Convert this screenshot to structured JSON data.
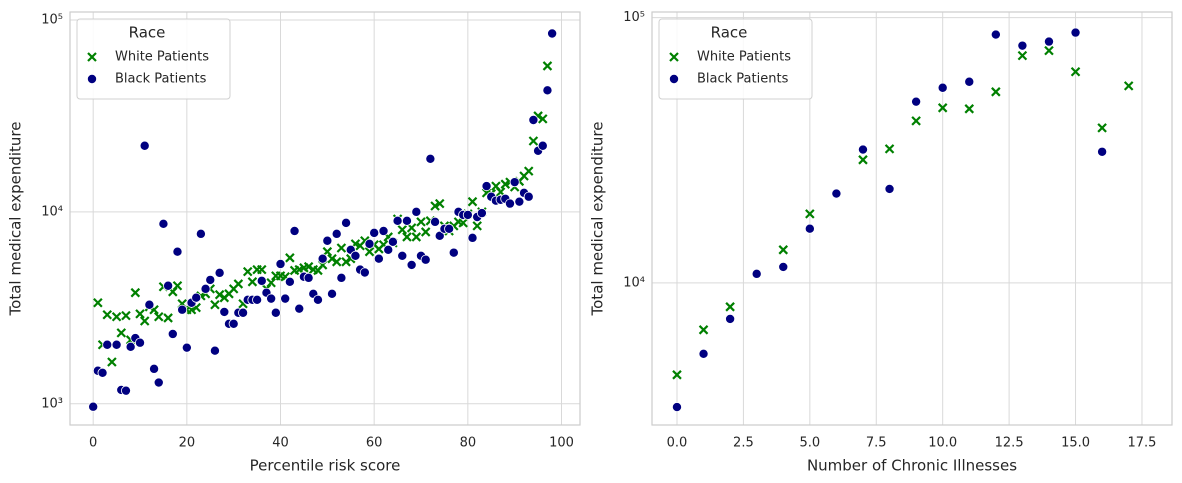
{
  "chart_data": [
    {
      "type": "scatter",
      "xlabel": "Percentile risk score",
      "ylabel": "Total medical expenditure",
      "yscale": "log",
      "grid": true,
      "xlim": [
        -4.95,
        103.95
      ],
      "ylim": [
        775,
        110000
      ],
      "xticks": [
        0,
        20,
        40,
        60,
        80,
        100
      ],
      "yticks": [
        {
          "value": 1000,
          "label": "10³"
        },
        {
          "value": 10000,
          "label": "10⁴"
        },
        {
          "value": 100000,
          "label": "10⁵"
        }
      ],
      "legend_title": "Race",
      "legend_loc": "upper left",
      "series": [
        {
          "name": "White Patients",
          "color": "#008000",
          "marker": "x",
          "x": [
            1,
            2,
            3,
            4,
            5,
            6,
            7,
            8,
            9,
            10,
            11,
            12,
            13,
            14,
            15,
            16,
            17,
            18,
            19,
            20,
            21,
            22,
            23,
            24,
            25,
            26,
            27,
            28,
            29,
            30,
            31,
            32,
            33,
            34,
            35,
            36,
            37,
            38,
            39,
            40,
            41,
            42,
            43,
            44,
            45,
            46,
            47,
            48,
            49,
            50,
            51,
            52,
            53,
            54,
            55,
            56,
            57,
            58,
            59,
            60,
            61,
            62,
            63,
            64,
            65,
            66,
            67,
            68,
            69,
            70,
            71,
            72,
            73,
            74,
            75,
            76,
            77,
            78,
            79,
            80,
            81,
            82,
            83,
            84,
            85,
            86,
            87,
            88,
            89,
            90,
            91,
            92,
            93,
            94,
            95,
            96,
            97
          ],
          "values": [
            3360,
            2030,
            2910,
            1650,
            2840,
            2340,
            2880,
            2150,
            3790,
            2940,
            2700,
            3200,
            3090,
            2840,
            4070,
            2800,
            3830,
            4120,
            3320,
            3090,
            3090,
            3170,
            3650,
            3740,
            3970,
            3280,
            3700,
            3570,
            3740,
            3970,
            4210,
            3320,
            4880,
            4320,
            5000,
            5000,
            3970,
            4270,
            4640,
            4640,
            4590,
            5760,
            4950,
            5000,
            5110,
            5180,
            5000,
            4950,
            5290,
            6200,
            5700,
            5490,
            6480,
            5490,
            5700,
            6810,
            6660,
            7070,
            6200,
            6740,
            6410,
            6740,
            7400,
            6890,
            9180,
            8070,
            7400,
            8250,
            7400,
            8870,
            7860,
            8980,
            10730,
            11040,
            8450,
            7950,
            8450,
            8870,
            8760,
            9750,
            11300,
            8450,
            10000,
            12560,
            12430,
            13620,
            12690,
            13940,
            14280,
            13470,
            14430,
            15370,
            16300,
            23400,
            31600,
            30500,
            57600
          ]
        },
        {
          "name": "Black Patients",
          "color": "#000080",
          "marker": "o",
          "x": [
            0,
            1,
            2,
            3,
            5,
            6,
            7,
            8,
            9,
            10,
            11,
            12,
            13,
            14,
            15,
            16,
            17,
            18,
            19,
            20,
            21,
            22,
            23,
            24,
            25,
            26,
            27,
            28,
            29,
            30,
            31,
            32,
            33,
            34,
            35,
            36,
            37,
            38,
            39,
            40,
            41,
            42,
            43,
            44,
            45,
            46,
            47,
            48,
            49,
            50,
            51,
            52,
            53,
            54,
            55,
            56,
            57,
            58,
            59,
            60,
            61,
            62,
            63,
            64,
            65,
            66,
            67,
            68,
            69,
            70,
            71,
            72,
            73,
            74,
            75,
            76,
            77,
            78,
            79,
            80,
            81,
            82,
            83,
            84,
            85,
            86,
            87,
            88,
            89,
            90,
            91,
            92,
            93,
            94,
            95,
            96,
            97,
            98
          ],
          "values": [
            965,
            1486,
            1450,
            2030,
            2030,
            1180,
            1170,
            1980,
            2200,
            2080,
            22100,
            3280,
            1520,
            1290,
            8660,
            4120,
            2310,
            6200,
            3090,
            1960,
            3360,
            3570,
            7680,
            3970,
            4420,
            1890,
            4810,
            3010,
            2610,
            2610,
            2980,
            2980,
            3480,
            3480,
            3480,
            4370,
            3790,
            3530,
            2980,
            5350,
            3530,
            4320,
            7950,
            3130,
            4590,
            4530,
            3740,
            3480,
            5700,
            7070,
            3740,
            7680,
            4530,
            8760,
            6340,
            5900,
            5000,
            4830,
            6810,
            7770,
            5700,
            7950,
            6340,
            6980,
            8980,
            5900,
            8980,
            5290,
            10000,
            5900,
            5630,
            18900,
            8870,
            7500,
            8160,
            8160,
            6130,
            10000,
            9640,
            9640,
            7320,
            9400,
            9850,
            13620,
            11990,
            11430,
            11560,
            11700,
            11040,
            14280,
            11300,
            12560,
            11990,
            30100,
            20800,
            22100,
            43000,
            85000
          ]
        }
      ]
    },
    {
      "type": "scatter",
      "xlabel": "Number of Chronic Illnesses",
      "ylabel": "Total medical expenditure",
      "yscale": "log",
      "grid": true,
      "xlim": [
        -0.94,
        18.63
      ],
      "ylim": [
        2910,
        105000
      ],
      "xticks": [
        {
          "value": 0,
          "label": "0.0"
        },
        2.5,
        {
          "value": 5,
          "label": "5.0"
        },
        7.5,
        {
          "value": 10,
          "label": "10.0"
        },
        12.5,
        {
          "value": 15,
          "label": "15.0"
        },
        17.5
      ],
      "yticks": [
        {
          "value": 10000,
          "label": "10⁴"
        },
        {
          "value": 100000,
          "label": "10⁵"
        }
      ],
      "legend_title": "Race",
      "legend_loc": "upper left",
      "series": [
        {
          "name": "White Patients",
          "color": "#008000",
          "marker": "x",
          "x": [
            0,
            1,
            2,
            4,
            5,
            7,
            8,
            9,
            10,
            11,
            12,
            13,
            14,
            15,
            16,
            17
          ],
          "values": [
            4500,
            6650,
            8120,
            13320,
            18200,
            29100,
            32000,
            40800,
            45700,
            45300,
            52500,
            71900,
            75100,
            62500,
            38400,
            55300
          ]
        },
        {
          "name": "Black Patients",
          "color": "#000080",
          "marker": "o",
          "x": [
            0,
            1,
            2,
            3,
            4,
            5,
            6,
            7,
            8,
            9,
            10,
            11,
            12,
            13,
            14,
            15,
            16
          ],
          "values": [
            3400,
            5400,
            7310,
            10810,
            11480,
            16000,
            21700,
            31800,
            22600,
            48200,
            54400,
            57300,
            86300,
            78400,
            81200,
            87800,
            31200
          ]
        }
      ]
    }
  ]
}
